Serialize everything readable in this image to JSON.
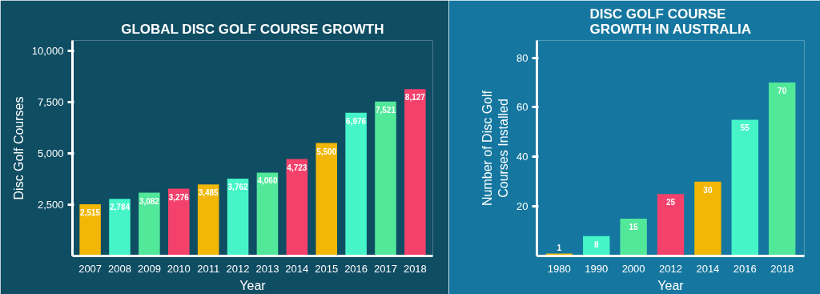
{
  "chart_data": [
    {
      "type": "bar",
      "title": "GLOBAL DISC GOLF COURSE GROWTH",
      "xlabel": "Year",
      "ylabel": "Disc Golf Courses",
      "categories": [
        "2007",
        "2008",
        "2009",
        "2010",
        "2011",
        "2012",
        "2013",
        "2014",
        "2015",
        "2016",
        "2017",
        "2018"
      ],
      "values": [
        2515,
        2784,
        3082,
        3276,
        3485,
        3762,
        4060,
        4723,
        5500,
        6976,
        7521,
        8127
      ],
      "value_labels": [
        "2,515",
        "2,784",
        "3,082",
        "3,276",
        "3,485",
        "3,762",
        "4,060",
        "4,723",
        "5,500",
        "6,976",
        "7,521",
        "8,127"
      ],
      "colors": [
        "#f2b705",
        "#45f5c8",
        "#52e89a",
        "#f4416c",
        "#f2b705",
        "#45f5c8",
        "#52e89a",
        "#f4416c",
        "#f2b705",
        "#45f5c8",
        "#52e89a",
        "#f4416c"
      ],
      "ylim": [
        0,
        10500
      ],
      "yticks": [
        {
          "value": 2500,
          "label": "2,500"
        },
        {
          "value": 5000,
          "label": "5,000"
        },
        {
          "value": 7500,
          "label": "7,500"
        },
        {
          "value": 10000,
          "label": "10,000"
        }
      ],
      "grid": false
    },
    {
      "type": "bar",
      "title": "DISC GOLF COURSE GROWTH IN AUSTRALIA",
      "xlabel": "Year",
      "ylabel": "Number of Disc Golf Courses Installed",
      "categories": [
        "1980",
        "1990",
        "2000",
        "2012",
        "2014",
        "2016",
        "2018"
      ],
      "values": [
        1,
        8,
        15,
        25,
        30,
        55,
        70
      ],
      "data_labels": true,
      "colors": [
        "#f2b705",
        "#45f5c8",
        "#52e89a",
        "#f4416c",
        "#f2b705",
        "#45f5c8",
        "#52e89a"
      ],
      "ylim": [
        0,
        87
      ],
      "yticks": [
        20,
        40,
        60,
        80
      ],
      "grid": false
    }
  ]
}
